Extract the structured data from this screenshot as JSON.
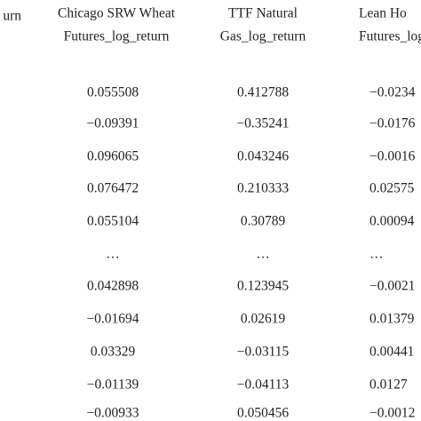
{
  "table": {
    "left_header": [
      "urn"
    ],
    "columns": [
      {
        "header": [
          "Chicago SRW Wheat",
          "Futures_log_return"
        ],
        "cells": [
          "0.055508",
          "−0.09391",
          "0.096065",
          "0.076472",
          "0.055104",
          "…",
          "0.042898",
          "−0.01694",
          "0.03329",
          "−0.01139",
          "−0.00933"
        ]
      },
      {
        "header": [
          "TTF Natural",
          "Gas_log_return"
        ],
        "cells": [
          "0.412788",
          "−0.35241",
          "0.043246",
          "0.210333",
          "0.30789",
          "…",
          "0.123945",
          "0.02619",
          "−0.03115",
          "−0.04113",
          "0.050456"
        ]
      },
      {
        "header": [
          "Lean Ho",
          "Futures_log_"
        ],
        "cells": [
          "−0.0234",
          "−0.0176",
          "−0.0016",
          "0.02575",
          "0.00094",
          "…",
          "−0.0021",
          "0.01379",
          "0.00441",
          "0.0127",
          "−0.0012"
        ]
      }
    ]
  }
}
